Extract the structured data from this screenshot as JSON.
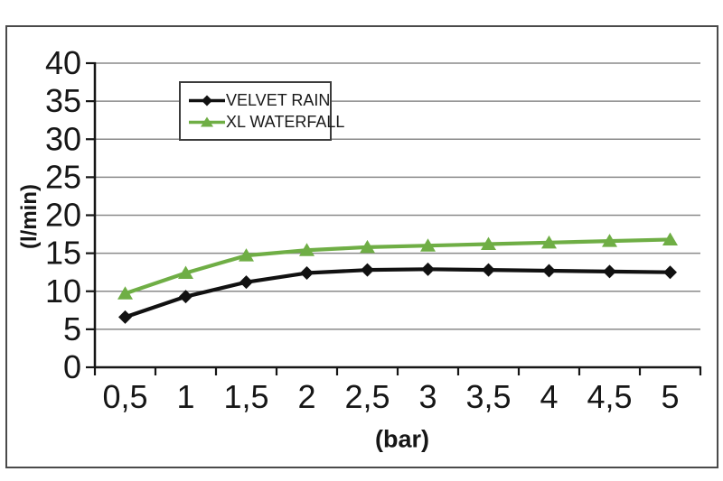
{
  "figure": {
    "background": "#ffffff",
    "frame_color": "#4a4a4a",
    "grid_color": "#8a8a8a",
    "axis_color": "#161616"
  },
  "chart_data": {
    "type": "line",
    "title": "",
    "xlabel": "(bar)",
    "ylabel": "(l/min)",
    "categories": [
      "0,5",
      "1",
      "1,5",
      "2",
      "2,5",
      "3",
      "3,5",
      "4",
      "4,5",
      "5"
    ],
    "series": [
      {
        "name": "VELVET RAIN",
        "color": "#111111",
        "marker": "diamond",
        "values": [
          6.6,
          9.3,
          11.2,
          12.4,
          12.8,
          12.9,
          12.8,
          12.7,
          12.6,
          12.5
        ]
      },
      {
        "name": "XL WATERFALL",
        "color": "#6fae45",
        "marker": "triangle",
        "values": [
          9.7,
          12.4,
          14.7,
          15.4,
          15.8,
          16.0,
          16.2,
          16.4,
          16.6,
          16.8
        ]
      }
    ],
    "ylim": [
      0,
      40
    ],
    "ytick_step": 5,
    "yticks": [
      "0",
      "5",
      "10",
      "15",
      "20",
      "25",
      "30",
      "35",
      "40"
    ],
    "grid": "horizontal-major",
    "legend_position": "inside-top-left",
    "x_axis_style": "category-with-boundary-ticks"
  }
}
